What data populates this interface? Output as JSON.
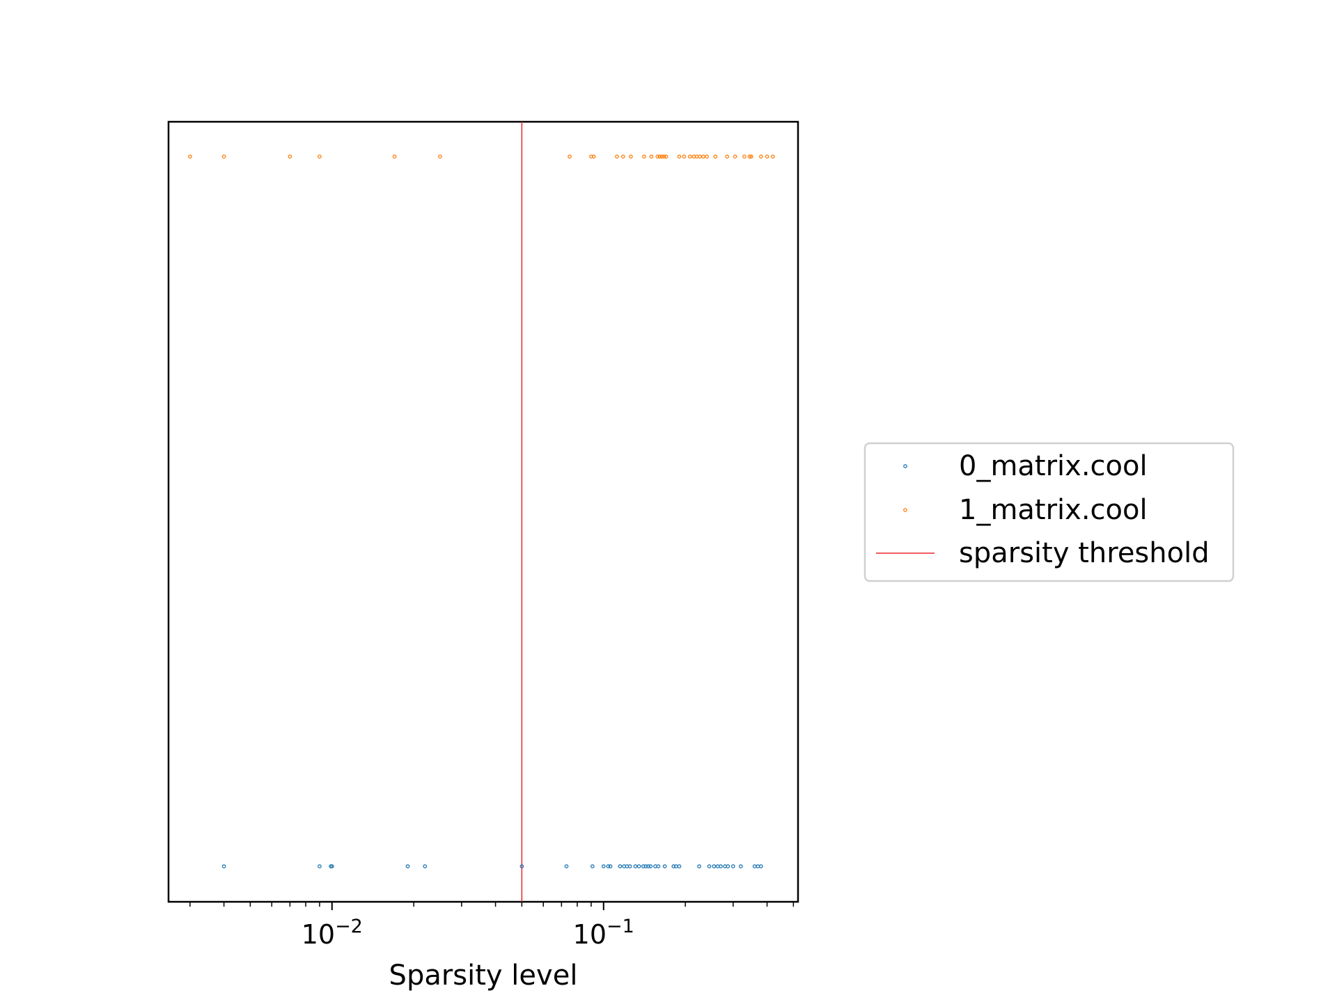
{
  "chart_data": {
    "type": "scatter",
    "xscale": "log",
    "xlim": [
      0.0025,
      0.52
    ],
    "xlabel": "Sparsity level",
    "xtick_labels": [
      {
        "value": 0.01,
        "base": "10",
        "exponent": "−2"
      },
      {
        "value": 0.1,
        "base": "10",
        "exponent": "−1"
      }
    ],
    "yticks_visible": false,
    "grid": false,
    "legend_position": "right, outside plot",
    "series": [
      {
        "name": "0_matrix.cool",
        "color": "#1f77b4",
        "row": "bottom",
        "x": [
          0.004,
          0.009,
          0.0099,
          0.01,
          0.019,
          0.022,
          0.05,
          0.073,
          0.091,
          0.1,
          0.104,
          0.106,
          0.115,
          0.119,
          0.122,
          0.125,
          0.131,
          0.135,
          0.14,
          0.143,
          0.146,
          0.149,
          0.155,
          0.159,
          0.168,
          0.181,
          0.185,
          0.19,
          0.225,
          0.245,
          0.255,
          0.263,
          0.27,
          0.28,
          0.287,
          0.3,
          0.32,
          0.36,
          0.37,
          0.38
        ]
      },
      {
        "name": "1_matrix.cool",
        "color": "#ff7f0e",
        "row": "top",
        "x": [
          0.003,
          0.004,
          0.007,
          0.009,
          0.017,
          0.025,
          0.075,
          0.09,
          0.092,
          0.112,
          0.118,
          0.126,
          0.141,
          0.15,
          0.158,
          0.161,
          0.164,
          0.167,
          0.17,
          0.19,
          0.198,
          0.208,
          0.215,
          0.22,
          0.226,
          0.233,
          0.24,
          0.258,
          0.285,
          0.305,
          0.33,
          0.345,
          0.35,
          0.38,
          0.4,
          0.42
        ]
      }
    ],
    "threshold": {
      "name": "sparsity threshold",
      "x": 0.05,
      "color": "#e8262a"
    }
  }
}
